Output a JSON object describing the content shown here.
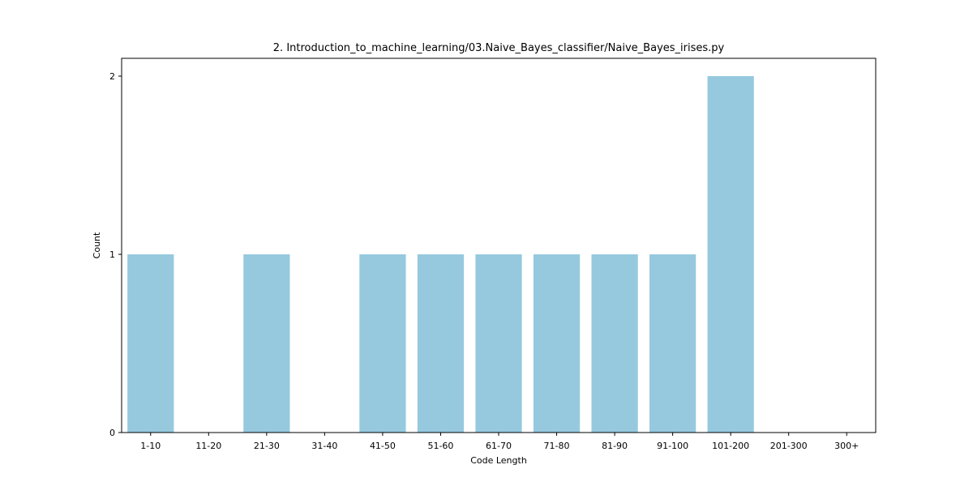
{
  "chart_data": {
    "type": "bar",
    "title": "2. Introduction_to_machine_learning/03.Naive_Bayes_classifier/Naive_Bayes_irises.py",
    "xlabel": "Code Length",
    "ylabel": "Count",
    "categories": [
      "1-10",
      "11-20",
      "21-30",
      "31-40",
      "41-50",
      "51-60",
      "61-70",
      "71-80",
      "81-90",
      "91-100",
      "101-200",
      "201-300",
      "300+"
    ],
    "values": [
      1,
      0,
      1,
      0,
      1,
      1,
      1,
      1,
      1,
      1,
      2,
      0,
      0
    ],
    "ylim": [
      0,
      2.1
    ],
    "yticks": [
      0,
      1,
      2
    ],
    "bar_color": "#96c9de",
    "grid": false,
    "legend": "none"
  }
}
